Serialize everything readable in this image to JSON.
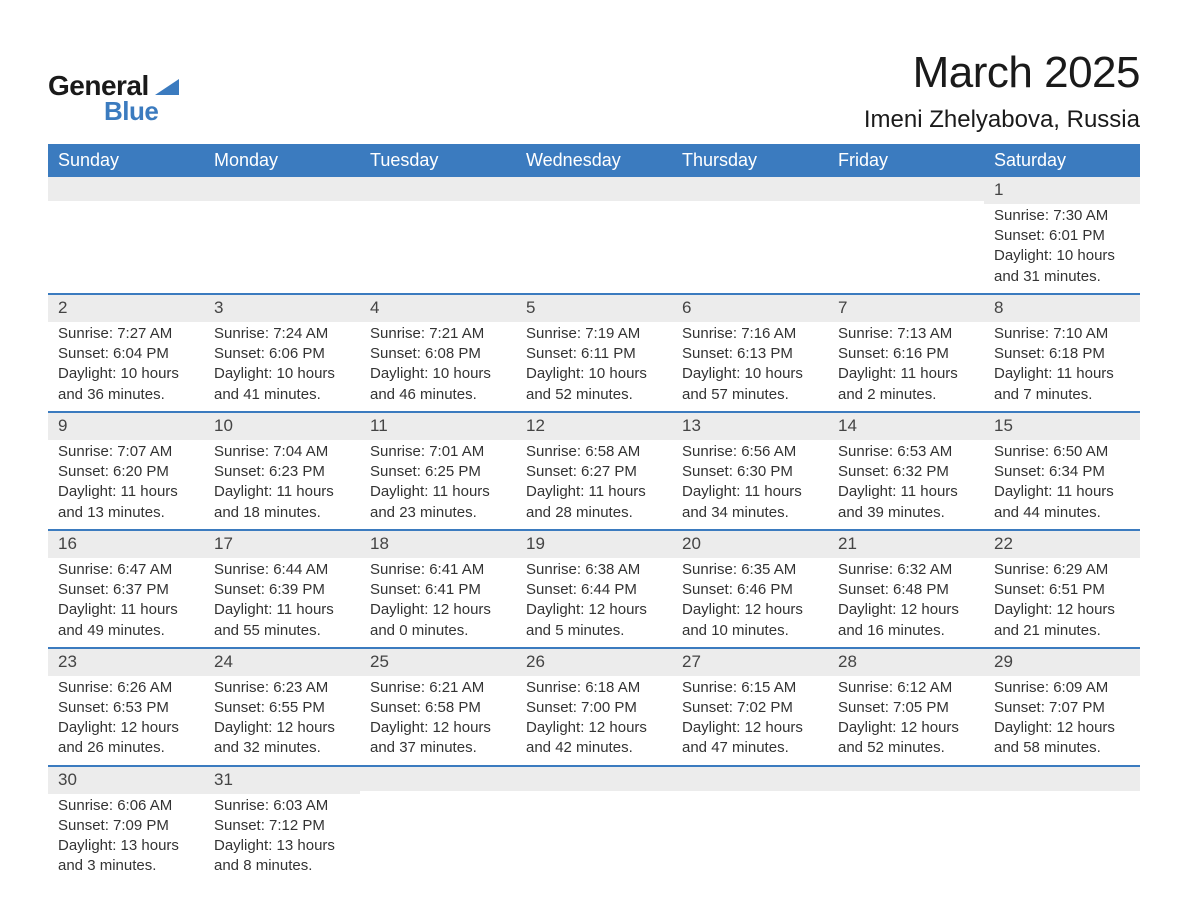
{
  "brand": {
    "general": "General",
    "blue": "Blue",
    "accent_color": "#3b7bbf"
  },
  "title": "March 2025",
  "location": "Imeni Zhelyabova, Russia",
  "weekday_header_bg": "#3b7bbf",
  "weekday_header_fg": "#ffffff",
  "daynum_bg": "#ececec",
  "row_divider_color": "#3b7bbf",
  "body_text_color": "#333333",
  "page_bg": "#ffffff",
  "font_family": "Arial",
  "title_fontsize_pt": 33,
  "location_fontsize_pt": 18,
  "weekday_fontsize_pt": 13.5,
  "cell_fontsize_pt": 11,
  "weekdays": [
    "Sunday",
    "Monday",
    "Tuesday",
    "Wednesday",
    "Thursday",
    "Friday",
    "Saturday"
  ],
  "weeks": [
    [
      null,
      null,
      null,
      null,
      null,
      null,
      {
        "n": "1",
        "sr": "Sunrise: 7:30 AM",
        "ss": "Sunset: 6:01 PM",
        "d1": "Daylight: 10 hours",
        "d2": "and 31 minutes."
      }
    ],
    [
      {
        "n": "2",
        "sr": "Sunrise: 7:27 AM",
        "ss": "Sunset: 6:04 PM",
        "d1": "Daylight: 10 hours",
        "d2": "and 36 minutes."
      },
      {
        "n": "3",
        "sr": "Sunrise: 7:24 AM",
        "ss": "Sunset: 6:06 PM",
        "d1": "Daylight: 10 hours",
        "d2": "and 41 minutes."
      },
      {
        "n": "4",
        "sr": "Sunrise: 7:21 AM",
        "ss": "Sunset: 6:08 PM",
        "d1": "Daylight: 10 hours",
        "d2": "and 46 minutes."
      },
      {
        "n": "5",
        "sr": "Sunrise: 7:19 AM",
        "ss": "Sunset: 6:11 PM",
        "d1": "Daylight: 10 hours",
        "d2": "and 52 minutes."
      },
      {
        "n": "6",
        "sr": "Sunrise: 7:16 AM",
        "ss": "Sunset: 6:13 PM",
        "d1": "Daylight: 10 hours",
        "d2": "and 57 minutes."
      },
      {
        "n": "7",
        "sr": "Sunrise: 7:13 AM",
        "ss": "Sunset: 6:16 PM",
        "d1": "Daylight: 11 hours",
        "d2": "and 2 minutes."
      },
      {
        "n": "8",
        "sr": "Sunrise: 7:10 AM",
        "ss": "Sunset: 6:18 PM",
        "d1": "Daylight: 11 hours",
        "d2": "and 7 minutes."
      }
    ],
    [
      {
        "n": "9",
        "sr": "Sunrise: 7:07 AM",
        "ss": "Sunset: 6:20 PM",
        "d1": "Daylight: 11 hours",
        "d2": "and 13 minutes."
      },
      {
        "n": "10",
        "sr": "Sunrise: 7:04 AM",
        "ss": "Sunset: 6:23 PM",
        "d1": "Daylight: 11 hours",
        "d2": "and 18 minutes."
      },
      {
        "n": "11",
        "sr": "Sunrise: 7:01 AM",
        "ss": "Sunset: 6:25 PM",
        "d1": "Daylight: 11 hours",
        "d2": "and 23 minutes."
      },
      {
        "n": "12",
        "sr": "Sunrise: 6:58 AM",
        "ss": "Sunset: 6:27 PM",
        "d1": "Daylight: 11 hours",
        "d2": "and 28 minutes."
      },
      {
        "n": "13",
        "sr": "Sunrise: 6:56 AM",
        "ss": "Sunset: 6:30 PM",
        "d1": "Daylight: 11 hours",
        "d2": "and 34 minutes."
      },
      {
        "n": "14",
        "sr": "Sunrise: 6:53 AM",
        "ss": "Sunset: 6:32 PM",
        "d1": "Daylight: 11 hours",
        "d2": "and 39 minutes."
      },
      {
        "n": "15",
        "sr": "Sunrise: 6:50 AM",
        "ss": "Sunset: 6:34 PM",
        "d1": "Daylight: 11 hours",
        "d2": "and 44 minutes."
      }
    ],
    [
      {
        "n": "16",
        "sr": "Sunrise: 6:47 AM",
        "ss": "Sunset: 6:37 PM",
        "d1": "Daylight: 11 hours",
        "d2": "and 49 minutes."
      },
      {
        "n": "17",
        "sr": "Sunrise: 6:44 AM",
        "ss": "Sunset: 6:39 PM",
        "d1": "Daylight: 11 hours",
        "d2": "and 55 minutes."
      },
      {
        "n": "18",
        "sr": "Sunrise: 6:41 AM",
        "ss": "Sunset: 6:41 PM",
        "d1": "Daylight: 12 hours",
        "d2": "and 0 minutes."
      },
      {
        "n": "19",
        "sr": "Sunrise: 6:38 AM",
        "ss": "Sunset: 6:44 PM",
        "d1": "Daylight: 12 hours",
        "d2": "and 5 minutes."
      },
      {
        "n": "20",
        "sr": "Sunrise: 6:35 AM",
        "ss": "Sunset: 6:46 PM",
        "d1": "Daylight: 12 hours",
        "d2": "and 10 minutes."
      },
      {
        "n": "21",
        "sr": "Sunrise: 6:32 AM",
        "ss": "Sunset: 6:48 PM",
        "d1": "Daylight: 12 hours",
        "d2": "and 16 minutes."
      },
      {
        "n": "22",
        "sr": "Sunrise: 6:29 AM",
        "ss": "Sunset: 6:51 PM",
        "d1": "Daylight: 12 hours",
        "d2": "and 21 minutes."
      }
    ],
    [
      {
        "n": "23",
        "sr": "Sunrise: 6:26 AM",
        "ss": "Sunset: 6:53 PM",
        "d1": "Daylight: 12 hours",
        "d2": "and 26 minutes."
      },
      {
        "n": "24",
        "sr": "Sunrise: 6:23 AM",
        "ss": "Sunset: 6:55 PM",
        "d1": "Daylight: 12 hours",
        "d2": "and 32 minutes."
      },
      {
        "n": "25",
        "sr": "Sunrise: 6:21 AM",
        "ss": "Sunset: 6:58 PM",
        "d1": "Daylight: 12 hours",
        "d2": "and 37 minutes."
      },
      {
        "n": "26",
        "sr": "Sunrise: 6:18 AM",
        "ss": "Sunset: 7:00 PM",
        "d1": "Daylight: 12 hours",
        "d2": "and 42 minutes."
      },
      {
        "n": "27",
        "sr": "Sunrise: 6:15 AM",
        "ss": "Sunset: 7:02 PM",
        "d1": "Daylight: 12 hours",
        "d2": "and 47 minutes."
      },
      {
        "n": "28",
        "sr": "Sunrise: 6:12 AM",
        "ss": "Sunset: 7:05 PM",
        "d1": "Daylight: 12 hours",
        "d2": "and 52 minutes."
      },
      {
        "n": "29",
        "sr": "Sunrise: 6:09 AM",
        "ss": "Sunset: 7:07 PM",
        "d1": "Daylight: 12 hours",
        "d2": "and 58 minutes."
      }
    ],
    [
      {
        "n": "30",
        "sr": "Sunrise: 6:06 AM",
        "ss": "Sunset: 7:09 PM",
        "d1": "Daylight: 13 hours",
        "d2": "and 3 minutes."
      },
      {
        "n": "31",
        "sr": "Sunrise: 6:03 AM",
        "ss": "Sunset: 7:12 PM",
        "d1": "Daylight: 13 hours",
        "d2": "and 8 minutes."
      },
      null,
      null,
      null,
      null,
      null
    ]
  ]
}
